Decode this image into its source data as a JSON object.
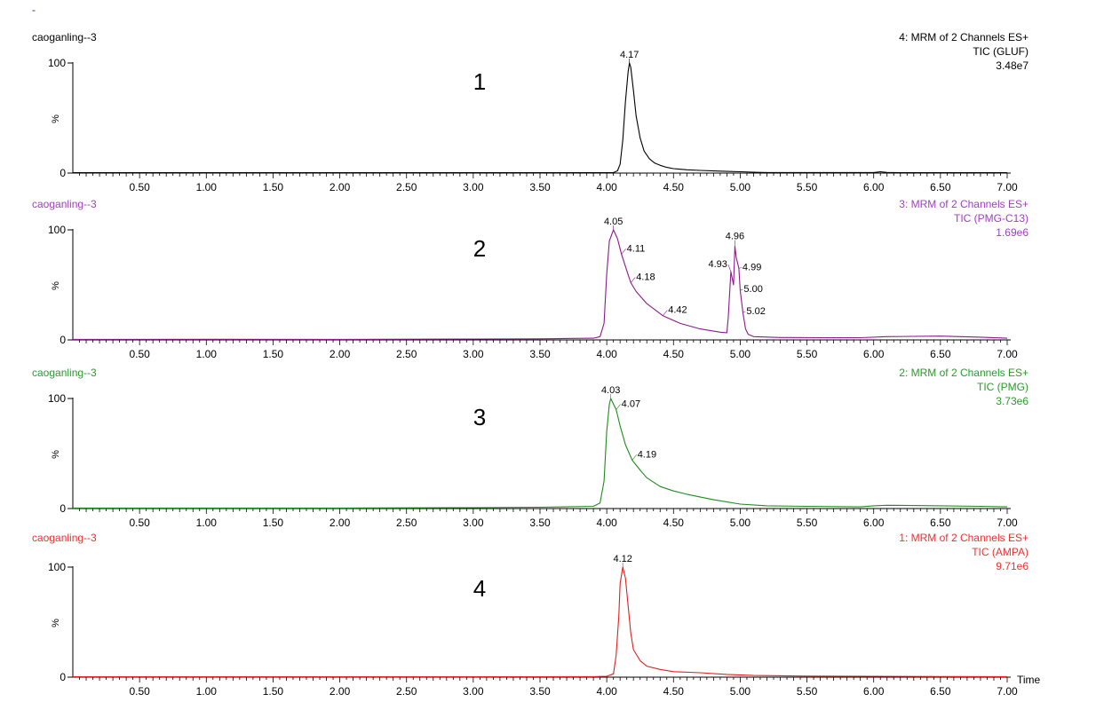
{
  "header_mark": "-",
  "chart_data": [
    {
      "type": "line",
      "sample": "caoganling--3",
      "color": "#000000",
      "label_color": "#000000",
      "channel": "4: MRM of 2 Channels ES+",
      "tic": "TIC (GLUF)",
      "intensity": "3.48e7",
      "panel_number": "1",
      "ylabel": "%",
      "yticks": [
        "100",
        "0"
      ],
      "xlim": [
        0,
        7.0
      ],
      "ylim": [
        0,
        100
      ],
      "xticks": [
        "0.50",
        "1.00",
        "1.50",
        "2.00",
        "2.50",
        "3.00",
        "3.50",
        "4.00",
        "4.50",
        "5.00",
        "5.50",
        "6.00",
        "6.50",
        "7.00"
      ],
      "xlabel": "",
      "series": [
        {
          "x": [
            0,
            1,
            2,
            3,
            3.9,
            4.05,
            4.08,
            4.1,
            4.12,
            4.14,
            4.16,
            4.17,
            4.18,
            4.2,
            4.22,
            4.25,
            4.28,
            4.32,
            4.36,
            4.4,
            4.45,
            4.5,
            4.6,
            4.7,
            4.8,
            4.9,
            5.0,
            5.1,
            5.2,
            6.0,
            6.05,
            6.1,
            6.2,
            7.0
          ],
          "y": [
            0.3,
            0.3,
            0.3,
            0.3,
            0.3,
            0.5,
            2,
            8,
            30,
            65,
            92,
            100,
            96,
            75,
            52,
            32,
            20,
            13,
            9,
            7,
            5.2,
            4,
            3,
            2.4,
            1.9,
            1.5,
            1.2,
            0.8,
            0.5,
            0.5,
            1.2,
            0.6,
            0.4,
            0.3
          ]
        }
      ],
      "annotations": [
        {
          "x": 4.17,
          "y": 100,
          "text": "4.17"
        }
      ]
    },
    {
      "type": "line",
      "sample": "caoganling--3",
      "color": "#8c1a8c",
      "label_color": "#a040c0",
      "channel": "3: MRM of 2 Channels ES+",
      "tic": "TIC (PMG-C13)",
      "intensity": "1.69e6",
      "panel_number": "2",
      "ylabel": "%",
      "yticks": [
        "100",
        "0"
      ],
      "xlim": [
        0,
        7.0
      ],
      "ylim": [
        0,
        100
      ],
      "xticks": [
        "0.50",
        "1.00",
        "1.50",
        "2.00",
        "2.50",
        "3.00",
        "3.50",
        "4.00",
        "4.50",
        "5.00",
        "5.50",
        "6.00",
        "6.50",
        "7.00"
      ],
      "xlabel": "",
      "series": [
        {
          "x": [
            0,
            1,
            2,
            3,
            3.5,
            3.9,
            3.95,
            3.98,
            4.0,
            4.02,
            4.05,
            4.08,
            4.11,
            4.15,
            4.18,
            4.22,
            4.3,
            4.42,
            4.55,
            4.7,
            4.85,
            4.9,
            4.91,
            4.93,
            4.95,
            4.96,
            4.97,
            4.99,
            5.0,
            5.02,
            5.04,
            5.06,
            5.1,
            5.3,
            5.6,
            5.9,
            6.1,
            6.5,
            6.8,
            7.0
          ],
          "y": [
            0.5,
            0.6,
            0.5,
            0.8,
            1,
            1.5,
            3,
            15,
            60,
            90,
            100,
            92,
            78,
            63,
            52,
            44,
            33,
            22,
            15,
            10,
            7,
            6.5,
            20,
            62,
            50,
            85,
            75,
            65,
            45,
            25,
            10,
            5,
            3,
            2.2,
            2,
            2,
            3,
            3.5,
            2.5,
            1.5
          ]
        }
      ],
      "annotations": [
        {
          "x": 4.05,
          "y": 100,
          "text": "4.05"
        },
        {
          "x": 4.11,
          "y": 78,
          "text": "4.11"
        },
        {
          "x": 4.18,
          "y": 52,
          "text": "4.18"
        },
        {
          "x": 4.42,
          "y": 22,
          "text": "4.42"
        },
        {
          "x": 4.93,
          "y": 62,
          "text": "4.93"
        },
        {
          "x": 4.96,
          "y": 85,
          "text": "4.96"
        },
        {
          "x": 4.99,
          "y": 65,
          "text": "4.99"
        },
        {
          "x": 5.0,
          "y": 45,
          "text": "5.00"
        },
        {
          "x": 5.02,
          "y": 25,
          "text": "5.02"
        }
      ]
    },
    {
      "type": "line",
      "sample": "caoganling--3",
      "color": "#1e8c1e",
      "label_color": "#2a9a2a",
      "channel": "2: MRM of 2 Channels ES+",
      "tic": "TIC (PMG)",
      "intensity": "3.73e6",
      "panel_number": "3",
      "ylabel": "%",
      "yticks": [
        "100",
        "0"
      ],
      "xlim": [
        0,
        7.0
      ],
      "ylim": [
        0,
        100
      ],
      "xticks": [
        "0.50",
        "1.00",
        "1.50",
        "2.00",
        "2.50",
        "3.00",
        "3.50",
        "4.00",
        "4.50",
        "5.00",
        "5.50",
        "6.00",
        "6.50",
        "7.00"
      ],
      "xlabel": "",
      "series": [
        {
          "x": [
            0,
            1,
            2,
            3,
            3.5,
            3.9,
            3.95,
            3.98,
            4.0,
            4.02,
            4.03,
            4.05,
            4.07,
            4.1,
            4.14,
            4.19,
            4.25,
            4.3,
            4.4,
            4.5,
            4.6,
            4.8,
            5.0,
            5.2,
            5.5,
            5.9,
            6.0,
            6.1,
            6.5,
            6.8,
            7.0
          ],
          "y": [
            0.5,
            0.5,
            0.5,
            0.8,
            1.2,
            2,
            5,
            25,
            70,
            95,
            100,
            95,
            90,
            75,
            58,
            44,
            35,
            28,
            20,
            16,
            13,
            8,
            4,
            2.5,
            2,
            1.5,
            2.5,
            3,
            2.5,
            2,
            1.5
          ]
        }
      ],
      "annotations": [
        {
          "x": 4.03,
          "y": 100,
          "text": "4.03"
        },
        {
          "x": 4.07,
          "y": 90,
          "text": "4.07"
        },
        {
          "x": 4.19,
          "y": 44,
          "text": "4.19"
        }
      ]
    },
    {
      "type": "line",
      "sample": "caoganling--3",
      "color": "#e02020",
      "label_color": "#f03030",
      "channel": "1: MRM of 2 Channels ES+",
      "tic": "TIC (AMPA)",
      "intensity": "9.71e6",
      "panel_number": "4",
      "ylabel": "%",
      "yticks": [
        "100",
        "0"
      ],
      "xlim": [
        0,
        7.0
      ],
      "ylim": [
        0,
        100
      ],
      "xticks": [
        "0.50",
        "1.00",
        "1.50",
        "2.00",
        "2.50",
        "3.00",
        "3.50",
        "4.00",
        "4.50",
        "5.00",
        "5.50",
        "6.00",
        "6.50",
        "7.00"
      ],
      "xlabel": "Time",
      "series": [
        {
          "x": [
            0,
            1,
            2,
            3,
            3.5,
            3.9,
            4.0,
            4.05,
            4.07,
            4.09,
            4.1,
            4.12,
            4.14,
            4.16,
            4.18,
            4.2,
            4.25,
            4.3,
            4.4,
            4.5,
            4.7,
            4.9,
            5.1,
            5.5,
            6.0,
            6.5,
            7.0
          ],
          "y": [
            0.3,
            0.3,
            0.3,
            0.3,
            0.4,
            0.5,
            0.8,
            3,
            20,
            55,
            85,
            100,
            90,
            65,
            40,
            25,
            15,
            10,
            7,
            5,
            4,
            2.5,
            1.5,
            1,
            0.8,
            0.6,
            0.5
          ]
        }
      ],
      "annotations": [
        {
          "x": 4.12,
          "y": 100,
          "text": "4.12"
        }
      ]
    }
  ]
}
